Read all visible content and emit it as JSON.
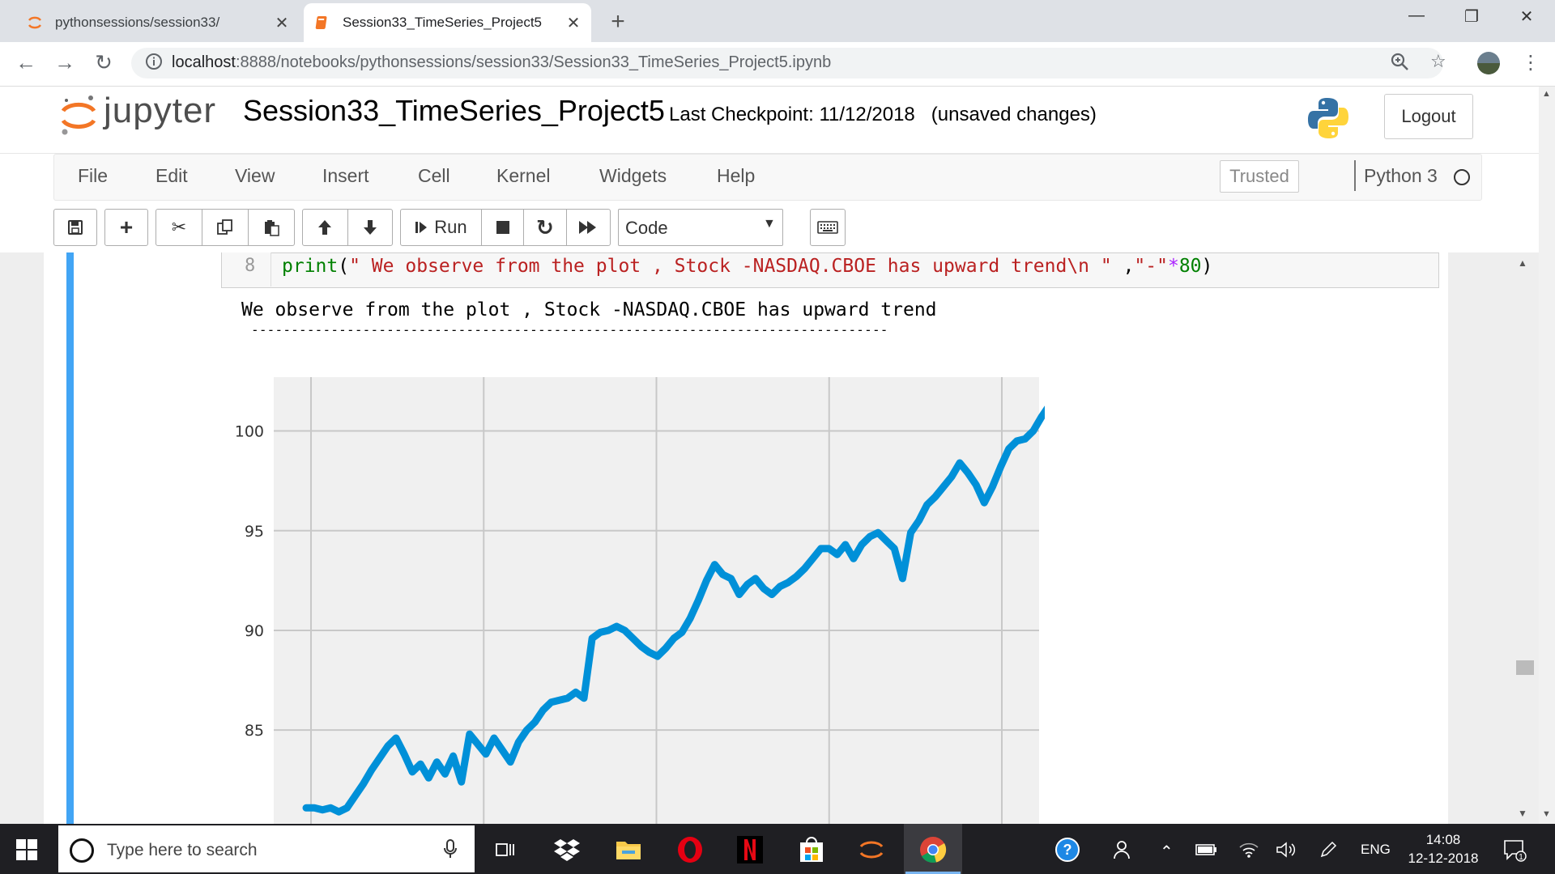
{
  "browser": {
    "tabs": [
      {
        "title": "pythonsessions/session33/",
        "active": false
      },
      {
        "title": "Session33_TimeSeries_Project5",
        "active": true
      }
    ],
    "url_host": "localhost",
    "url_path": ":8888/notebooks/pythonsessions/session33/Session33_TimeSeries_Project5.ipynb"
  },
  "jupyter": {
    "logo_text": "jupyter",
    "notebook_name": "Session33_TimeSeries_Project5",
    "checkpoint": "Last Checkpoint: 11/12/2018   (unsaved changes)",
    "logout_label": "Logout",
    "menu": [
      "File",
      "Edit",
      "View",
      "Insert",
      "Cell",
      "Kernel",
      "Widgets",
      "Help"
    ],
    "trusted_label": "Trusted",
    "kernel_name": "Python 3",
    "run_label": "Run",
    "cell_type": "Code"
  },
  "cell": {
    "line_number": "8",
    "code_func": "print",
    "code_open": "(",
    "code_str1": "\" We observe from the plot , Stock -NASDAQ.CBOE has upward trend\\n \"",
    "code_comma": " ,",
    "code_str2": "\"-\"",
    "code_op": "*",
    "code_num": "80",
    "code_close": ")",
    "output_line1": "We observe from the plot , Stock -NASDAQ.CBOE has upward trend",
    "output_line2": "--------------------------------------------------------------------------------"
  },
  "chart_data": {
    "type": "line",
    "title": "",
    "xlabel": "",
    "ylabel": "",
    "yticks": [
      85,
      90,
      95,
      100
    ],
    "ylim": [
      80.3,
      102.7
    ],
    "grid": true,
    "color": "#0090d8",
    "background": "#f0f0f0",
    "x_gridlines": 5,
    "series": [
      {
        "values": [
          81.1,
          81.1,
          81.0,
          81.1,
          80.9,
          81.1,
          81.7,
          82.3,
          83.0,
          83.6,
          84.2,
          84.6,
          83.8,
          82.9,
          83.3,
          82.6,
          83.4,
          82.8,
          83.7,
          82.4,
          84.8,
          84.3,
          83.8,
          84.6,
          84.0,
          83.4,
          84.4,
          85.0,
          85.4,
          86.0,
          86.4,
          86.5,
          86.6,
          86.9,
          86.6,
          89.6,
          89.9,
          90.0,
          90.2,
          90.0,
          89.6,
          89.2,
          88.9,
          88.7,
          89.1,
          89.6,
          89.9,
          90.6,
          91.5,
          92.5,
          93.3,
          92.8,
          92.6,
          91.8,
          92.3,
          92.6,
          92.1,
          91.8,
          92.2,
          92.4,
          92.7,
          93.1,
          93.6,
          94.1,
          94.1,
          93.8,
          94.3,
          93.6,
          94.3,
          94.7,
          94.9,
          94.5,
          94.1,
          92.6,
          94.9,
          95.5,
          96.3,
          96.7,
          97.2,
          97.7,
          98.4,
          97.9,
          97.3,
          96.4,
          97.2,
          98.2,
          99.1,
          99.5,
          99.6,
          100.0,
          100.7,
          101.3
        ]
      }
    ]
  }
}
